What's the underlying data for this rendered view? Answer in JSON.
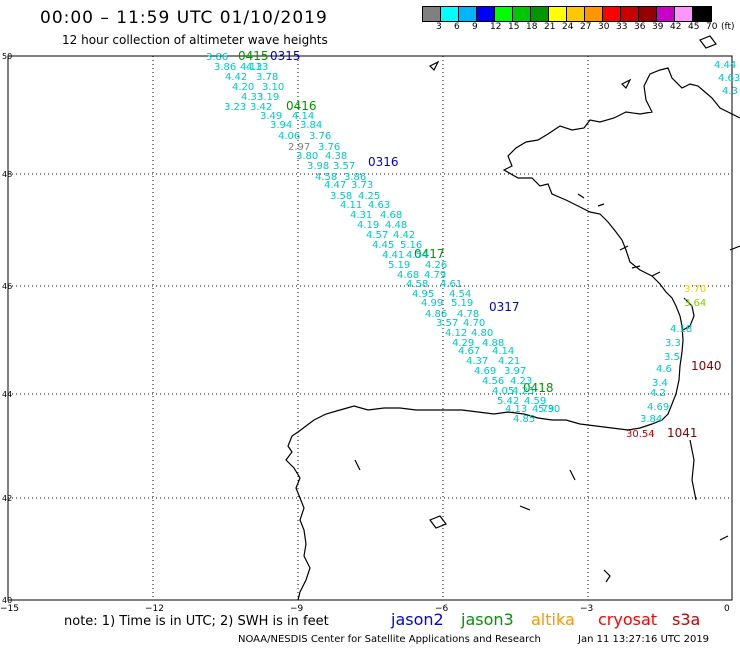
{
  "title": "00:00 – 11:59 UTC 01/10/2019",
  "subtitle": "12 hour collection of altimeter wave heights",
  "colorbar": {
    "colors": [
      "#808080",
      "#00ffff",
      "#00b4ff",
      "#0000ff",
      "#00ff00",
      "#00c800",
      "#009600",
      "#ffff00",
      "#ffc800",
      "#ff9600",
      "#ff0000",
      "#c80000",
      "#960000",
      "#c800c8",
      "#ff96ff",
      "#000000"
    ],
    "labels": [
      "3",
      "6",
      "9",
      "12",
      "15",
      "18",
      "21",
      "24",
      "27",
      "30",
      "33",
      "36",
      "39",
      "42",
      "45",
      "70",
      "(ft)"
    ]
  },
  "map": {
    "lat_ticks": [
      "50",
      "48",
      "46",
      "44",
      "42",
      "40"
    ],
    "lon_ticks": [
      "−15",
      "−12",
      "−9",
      "−6",
      "−3",
      "0"
    ],
    "track_times": [
      {
        "text": "0415",
        "color": "#009600"
      },
      {
        "text": "0315",
        "color": "#0000c8"
      },
      {
        "text": "0416",
        "color": "#009600"
      },
      {
        "text": "0316",
        "color": "#0000c8"
      },
      {
        "text": "0417",
        "color": "#009600"
      },
      {
        "text": "0317",
        "color": "#0000c8"
      },
      {
        "text": "0418",
        "color": "#009600"
      },
      {
        "text": "1040",
        "color": "#800000"
      },
      {
        "text": "1041",
        "color": "#800000"
      }
    ],
    "swh_values": [
      "3.86",
      "4.13",
      "3.86",
      "4.13",
      "4.42",
      "3.78",
      "4.20",
      "3.10",
      "4.33",
      "3.19",
      "3.23",
      "3.42",
      "3.49",
      "4.14",
      "3.94",
      "3.84",
      "4.06",
      "3.76",
      "2.97",
      "3.76",
      "3.80",
      "4.38",
      "3.98",
      "3.57",
      "4.58",
      "3.86",
      "4.47",
      "3.73",
      "3.58",
      "4.25",
      "4.11",
      "4.63",
      "4.31",
      "4.68",
      "4.19",
      "4.48",
      "4.57",
      "4.42",
      "4.45",
      "5.16",
      "4.41",
      "4.54",
      "5.19",
      "4.26",
      "4.68",
      "4.79",
      "4.58",
      "4.61",
      "4.95",
      "4.54",
      "4.99",
      "5.19",
      "4.86",
      "4.78",
      "3.57",
      "4.70",
      "4.12",
      "4.80",
      "4.29",
      "4.88",
      "4.67",
      "4.14",
      "4.37",
      "4.21",
      "4.69",
      "3.97",
      "4.56",
      "4.23",
      "4.05",
      "4.25",
      "5.42",
      "4.59",
      "4.13",
      "4.79",
      "4.85",
      "5.30",
      "4.44",
      "4.63",
      "4.3",
      "3.70",
      "3.64",
      "4.18",
      "3.3",
      "3.5",
      "4.6",
      "3.4",
      "4.2",
      "4.69",
      "3.84",
      "30.54"
    ]
  },
  "note": "note:  1) Time is in UTC;  2) SWH is in feet",
  "legend": [
    {
      "label": "jason2",
      "color": "#0000ff"
    },
    {
      "label": "jason3",
      "color": "#009600"
    },
    {
      "label": "altika",
      "color": "#ff9600"
    },
    {
      "label": "cryosat",
      "color": "#ff0000"
    },
    {
      "label": "s3a",
      "color": "#c80000"
    }
  ],
  "credit": "NOAA/NESDIS Center for Satellite Applications and Research",
  "credit_time": "Jan 11 13:27:16 UTC 2019"
}
